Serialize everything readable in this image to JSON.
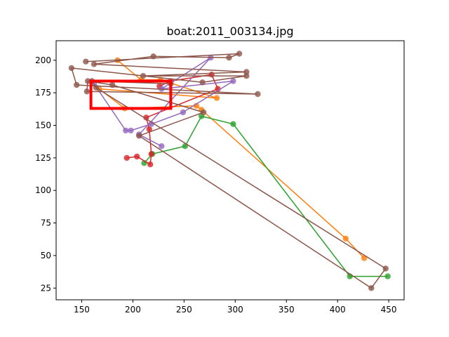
{
  "chart_data": {
    "type": "scatter",
    "title": "boat:2011_003134.jpg",
    "xlabel": "",
    "ylabel": "",
    "xlim": [
      125,
      465
    ],
    "ylim": [
      16,
      215
    ],
    "xticks": [
      150,
      200,
      250,
      300,
      350,
      400,
      450
    ],
    "yticks": [
      25,
      50,
      75,
      100,
      125,
      150,
      175,
      200
    ],
    "xtick_labels": [
      "150",
      "200",
      "250",
      "300",
      "350",
      "400",
      "450"
    ],
    "ytick_labels": [
      "25",
      "50",
      "75",
      "100",
      "125",
      "150",
      "175",
      "200"
    ],
    "grid": false,
    "box": {
      "x0": 159,
      "x1": 237,
      "y0": 163,
      "y1": 184,
      "color": "#ff0000"
    },
    "series": [
      {
        "color": "#ff7f0e",
        "points": [
          [
            185,
            200
          ],
          [
            208,
            185
          ],
          [
            227,
            185
          ],
          [
            282,
            171
          ],
          [
            167,
            178
          ],
          [
            192,
            163
          ],
          [
            262,
            165
          ],
          [
            267,
            162
          ],
          [
            408,
            63
          ],
          [
            426,
            48
          ]
        ]
      },
      {
        "color": "#2ca02c",
        "points": [
          [
            211,
            121
          ],
          [
            219,
            128
          ],
          [
            251,
            134
          ],
          [
            267,
            157
          ],
          [
            298,
            151
          ],
          [
            412,
            34
          ],
          [
            449,
            34
          ]
        ]
      },
      {
        "color": "#d62728",
        "points": [
          [
            194,
            125
          ],
          [
            204,
            126
          ],
          [
            217,
            120
          ],
          [
            218,
            128
          ],
          [
            216,
            147
          ],
          [
            213,
            156
          ],
          [
            283,
            178
          ],
          [
            277,
            189
          ],
          [
            237,
            184
          ],
          [
            226,
            180
          ]
        ]
      },
      {
        "color": "#9467bd",
        "points": [
          [
            162,
            182
          ],
          [
            193,
            146
          ],
          [
            198,
            146
          ],
          [
            218,
            151
          ],
          [
            249,
            160
          ],
          [
            298,
            184
          ],
          [
            228,
            178
          ],
          [
            276,
            202
          ],
          [
            206,
            143
          ],
          [
            228,
            134
          ]
        ]
      },
      {
        "color": "#8c564b",
        "points": [
          [
            154,
            199
          ],
          [
            304,
            205
          ],
          [
            294,
            202
          ],
          [
            220,
            203
          ],
          [
            162,
            197
          ],
          [
            311,
            191
          ],
          [
            210,
            188
          ],
          [
            311,
            188
          ],
          [
            268,
            183
          ],
          [
            140,
            194
          ],
          [
            145,
            181
          ],
          [
            322,
            174
          ],
          [
            155,
            176
          ],
          [
            156,
            184
          ],
          [
            180,
            181
          ],
          [
            269,
            160
          ],
          [
            206,
            142
          ],
          [
            433,
            25
          ],
          [
            447,
            40
          ],
          [
            164,
            179
          ],
          [
            160,
            184
          ],
          [
            237,
            182
          ]
        ]
      }
    ]
  }
}
